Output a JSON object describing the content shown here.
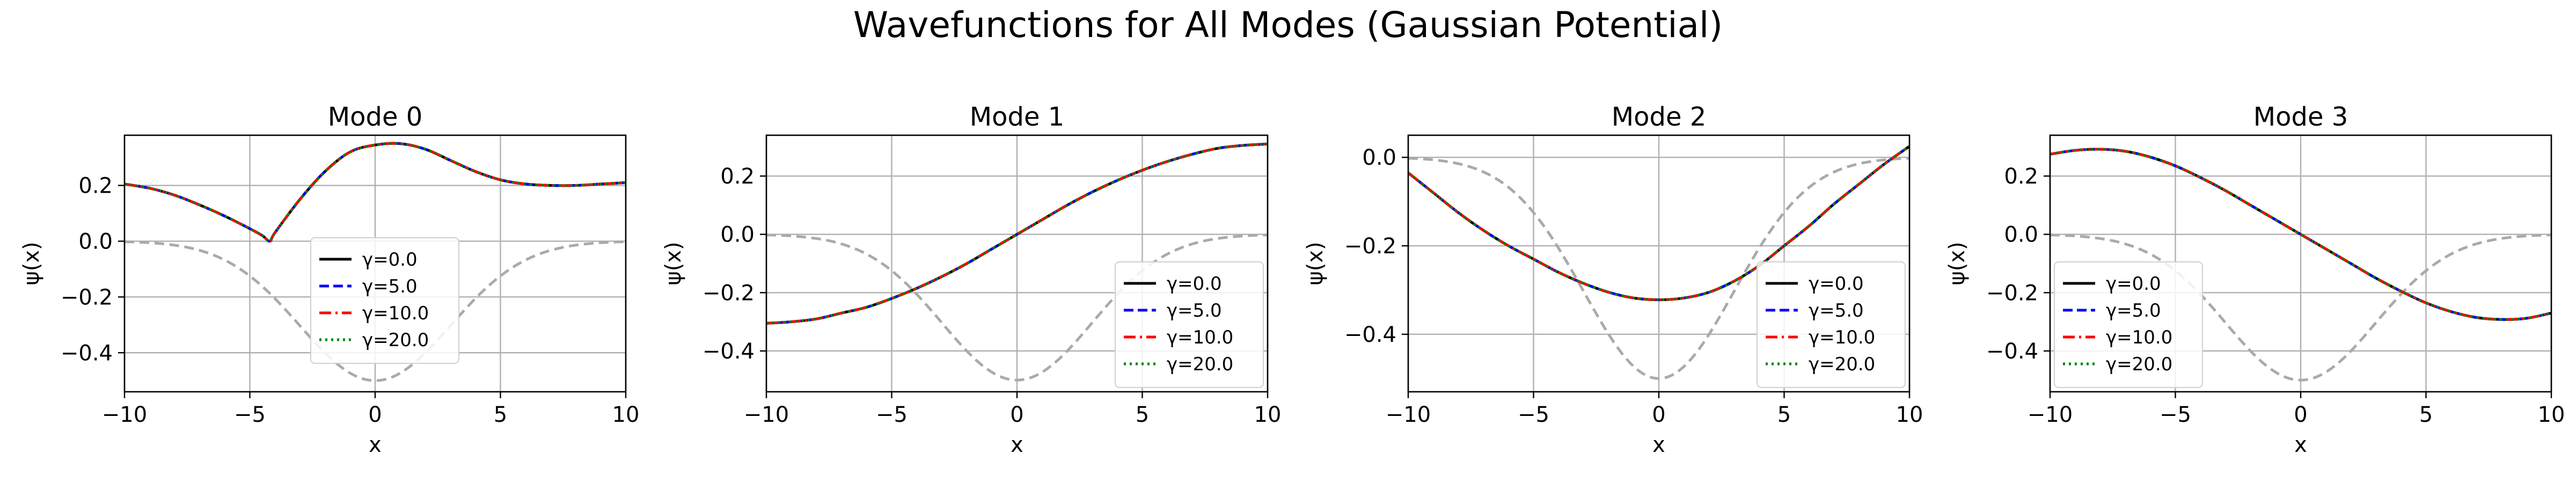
{
  "suptitle": "Wavefunctions for All Modes (Gaussian Potential)",
  "colors": {
    "gamma_0": "#000000",
    "gamma_5": "#0000ff",
    "gamma_10": "#ff0000",
    "gamma_20": "#008000",
    "potential": "#aaaaaa",
    "grid": "#b0b0b0"
  },
  "chart_data": [
    {
      "type": "line",
      "title": "Mode 0",
      "xlabel": "x",
      "ylabel": "ψ(x)",
      "xlim": [
        -10,
        10
      ],
      "ylim": [
        -0.54,
        0.38
      ],
      "xticks": [
        -10,
        -5,
        0,
        5,
        10
      ],
      "yticks": [
        -0.4,
        -0.2,
        0.0,
        0.2
      ],
      "ytick_labels": [
        "−0.4",
        "−0.2",
        "0.0",
        "0.2"
      ],
      "xtick_labels": [
        "−10",
        "−5",
        "0",
        "5",
        "10"
      ],
      "grid": true,
      "legend_position": "center",
      "legend": [
        "γ=0.0",
        "γ=5.0",
        "γ=10.0",
        "γ=20.0"
      ],
      "x": [
        -10,
        -9,
        -8,
        -7,
        -6,
        -5,
        -4.5,
        -4.2,
        -4,
        -3,
        -2,
        -1,
        0,
        1,
        2,
        3,
        4,
        5,
        6,
        7,
        8,
        9,
        10
      ],
      "series": [
        {
          "name": "γ=0.0",
          "values": [
            0.205,
            0.19,
            0.165,
            0.13,
            0.09,
            0.045,
            0.02,
            0.0,
            0.03,
            0.15,
            0.25,
            0.32,
            0.345,
            0.35,
            0.33,
            0.29,
            0.25,
            0.22,
            0.205,
            0.2,
            0.2,
            0.205,
            0.21
          ]
        },
        {
          "name": "γ=5.0",
          "values": [
            0.205,
            0.19,
            0.165,
            0.13,
            0.09,
            0.045,
            0.02,
            0.0,
            0.03,
            0.15,
            0.25,
            0.32,
            0.345,
            0.35,
            0.33,
            0.29,
            0.25,
            0.22,
            0.205,
            0.2,
            0.2,
            0.205,
            0.21
          ]
        },
        {
          "name": "γ=10.0",
          "values": [
            0.205,
            0.19,
            0.165,
            0.13,
            0.09,
            0.045,
            0.02,
            0.0,
            0.03,
            0.15,
            0.25,
            0.32,
            0.345,
            0.35,
            0.33,
            0.29,
            0.25,
            0.22,
            0.205,
            0.2,
            0.2,
            0.205,
            0.21
          ]
        },
        {
          "name": "γ=20.0",
          "values": [
            0.205,
            0.19,
            0.165,
            0.13,
            0.09,
            0.045,
            0.02,
            0.0,
            0.03,
            0.15,
            0.25,
            0.32,
            0.345,
            0.35,
            0.33,
            0.29,
            0.25,
            0.22,
            0.205,
            0.2,
            0.2,
            0.205,
            0.21
          ]
        }
      ],
      "potential": {
        "amplitude": -0.5,
        "sigma": 3.0
      }
    },
    {
      "type": "line",
      "title": "Mode 1",
      "xlabel": "x",
      "ylabel": "ψ(x)",
      "xlim": [
        -10,
        10
      ],
      "ylim": [
        -0.54,
        0.34
      ],
      "xticks": [
        -10,
        -5,
        0,
        5,
        10
      ],
      "yticks": [
        -0.4,
        -0.2,
        0.0,
        0.2
      ],
      "ytick_labels": [
        "−0.4",
        "−0.2",
        "0.0",
        "0.2"
      ],
      "xtick_labels": [
        "−10",
        "−5",
        "0",
        "5",
        "10"
      ],
      "grid": true,
      "legend_position": "lower right",
      "legend": [
        "γ=0.0",
        "γ=5.0",
        "γ=10.0",
        "γ=20.0"
      ],
      "x": [
        -10,
        -9,
        -8,
        -7,
        -6,
        -5,
        -4,
        -3,
        -2,
        -1,
        0,
        1,
        2,
        3,
        4,
        5,
        6,
        7,
        8,
        9,
        10
      ],
      "series": [
        {
          "name": "γ=0.0",
          "values": [
            -0.305,
            -0.3,
            -0.29,
            -0.27,
            -0.25,
            -0.22,
            -0.185,
            -0.145,
            -0.1,
            -0.05,
            0.0,
            0.05,
            0.1,
            0.145,
            0.185,
            0.22,
            0.25,
            0.275,
            0.295,
            0.305,
            0.31
          ]
        },
        {
          "name": "γ=5.0",
          "values": [
            -0.305,
            -0.3,
            -0.29,
            -0.27,
            -0.25,
            -0.22,
            -0.185,
            -0.145,
            -0.1,
            -0.05,
            0.0,
            0.05,
            0.1,
            0.145,
            0.185,
            0.22,
            0.25,
            0.275,
            0.295,
            0.305,
            0.31
          ]
        },
        {
          "name": "γ=10.0",
          "values": [
            -0.305,
            -0.3,
            -0.29,
            -0.27,
            -0.25,
            -0.22,
            -0.185,
            -0.145,
            -0.1,
            -0.05,
            0.0,
            0.05,
            0.1,
            0.145,
            0.185,
            0.22,
            0.25,
            0.275,
            0.295,
            0.305,
            0.31
          ]
        },
        {
          "name": "γ=20.0",
          "values": [
            -0.305,
            -0.3,
            -0.29,
            -0.27,
            -0.25,
            -0.22,
            -0.185,
            -0.145,
            -0.1,
            -0.05,
            0.0,
            0.05,
            0.1,
            0.145,
            0.185,
            0.22,
            0.25,
            0.275,
            0.295,
            0.305,
            0.31
          ]
        }
      ],
      "potential": {
        "amplitude": -0.5,
        "sigma": 3.0
      }
    },
    {
      "type": "line",
      "title": "Mode 2",
      "xlabel": "x",
      "ylabel": "ψ(x)",
      "xlim": [
        -10,
        10
      ],
      "ylim": [
        -0.53,
        0.05
      ],
      "xticks": [
        -10,
        -5,
        0,
        5,
        10
      ],
      "yticks": [
        -0.4,
        -0.2,
        0.0
      ],
      "ytick_labels": [
        "−0.4",
        "−0.2",
        "0.0"
      ],
      "xtick_labels": [
        "−10",
        "−5",
        "0",
        "5",
        "10"
      ],
      "grid": true,
      "legend_position": "lower right",
      "legend": [
        "γ=0.0",
        "γ=5.0",
        "γ=10.0",
        "γ=20.0"
      ],
      "x": [
        -10,
        -9,
        -8,
        -7,
        -6,
        -5,
        -4,
        -3,
        -2,
        -1,
        0,
        1,
        2,
        3,
        4,
        5,
        6,
        7,
        8,
        9,
        10
      ],
      "series": [
        {
          "name": "γ=0.0",
          "values": [
            -0.035,
            -0.08,
            -0.125,
            -0.165,
            -0.2,
            -0.23,
            -0.26,
            -0.285,
            -0.305,
            -0.318,
            -0.322,
            -0.318,
            -0.305,
            -0.28,
            -0.245,
            -0.2,
            -0.155,
            -0.105,
            -0.06,
            -0.015,
            0.025
          ]
        },
        {
          "name": "γ=5.0",
          "values": [
            -0.035,
            -0.08,
            -0.125,
            -0.165,
            -0.2,
            -0.23,
            -0.26,
            -0.285,
            -0.305,
            -0.318,
            -0.322,
            -0.318,
            -0.305,
            -0.28,
            -0.245,
            -0.2,
            -0.155,
            -0.105,
            -0.06,
            -0.015,
            0.025
          ]
        },
        {
          "name": "γ=10.0",
          "values": [
            -0.035,
            -0.08,
            -0.125,
            -0.165,
            -0.2,
            -0.23,
            -0.26,
            -0.285,
            -0.305,
            -0.318,
            -0.322,
            -0.318,
            -0.305,
            -0.28,
            -0.245,
            -0.2,
            -0.155,
            -0.105,
            -0.06,
            -0.015,
            0.025
          ]
        },
        {
          "name": "γ=20.0",
          "values": [
            -0.035,
            -0.08,
            -0.125,
            -0.165,
            -0.2,
            -0.23,
            -0.26,
            -0.285,
            -0.305,
            -0.318,
            -0.322,
            -0.318,
            -0.305,
            -0.28,
            -0.245,
            -0.2,
            -0.155,
            -0.105,
            -0.06,
            -0.015,
            0.025
          ]
        }
      ],
      "potential": {
        "amplitude": -0.5,
        "sigma": 3.0
      }
    },
    {
      "type": "line",
      "title": "Mode 3",
      "xlabel": "x",
      "ylabel": "ψ(x)",
      "xlim": [
        -10,
        10
      ],
      "ylim": [
        -0.54,
        0.34
      ],
      "xticks": [
        -10,
        -5,
        0,
        5,
        10
      ],
      "yticks": [
        -0.4,
        -0.2,
        0.0,
        0.2
      ],
      "ytick_labels": [
        "−0.4",
        "−0.2",
        "0.0",
        "0.2"
      ],
      "xtick_labels": [
        "−10",
        "−5",
        "0",
        "5",
        "10"
      ],
      "grid": true,
      "legend_position": "lower left",
      "legend": [
        "γ=0.0",
        "γ=5.0",
        "γ=10.0",
        "γ=20.0"
      ],
      "x": [
        -10,
        -9,
        -8,
        -7,
        -6,
        -5,
        -4,
        -3,
        -2,
        -1,
        0,
        1,
        2,
        3,
        4,
        5,
        6,
        7,
        8,
        9,
        10
      ],
      "series": [
        {
          "name": "γ=0.0",
          "values": [
            0.275,
            0.288,
            0.292,
            0.285,
            0.265,
            0.235,
            0.195,
            0.15,
            0.1,
            0.05,
            0.0,
            -0.05,
            -0.1,
            -0.15,
            -0.195,
            -0.235,
            -0.265,
            -0.285,
            -0.292,
            -0.288,
            -0.27
          ]
        },
        {
          "name": "γ=5.0",
          "values": [
            0.275,
            0.288,
            0.292,
            0.285,
            0.265,
            0.235,
            0.195,
            0.15,
            0.1,
            0.05,
            0.0,
            -0.05,
            -0.1,
            -0.15,
            -0.195,
            -0.235,
            -0.265,
            -0.285,
            -0.292,
            -0.288,
            -0.27
          ]
        },
        {
          "name": "γ=10.0",
          "values": [
            0.275,
            0.288,
            0.292,
            0.285,
            0.265,
            0.235,
            0.195,
            0.15,
            0.1,
            0.05,
            0.0,
            -0.05,
            -0.1,
            -0.15,
            -0.195,
            -0.235,
            -0.265,
            -0.285,
            -0.292,
            -0.288,
            -0.27
          ]
        },
        {
          "name": "γ=20.0",
          "values": [
            0.275,
            0.288,
            0.292,
            0.285,
            0.265,
            0.235,
            0.195,
            0.15,
            0.1,
            0.05,
            0.0,
            -0.05,
            -0.1,
            -0.15,
            -0.195,
            -0.235,
            -0.265,
            -0.285,
            -0.292,
            -0.288,
            -0.27
          ]
        }
      ],
      "potential": {
        "amplitude": -0.5,
        "sigma": 3.0
      }
    }
  ]
}
